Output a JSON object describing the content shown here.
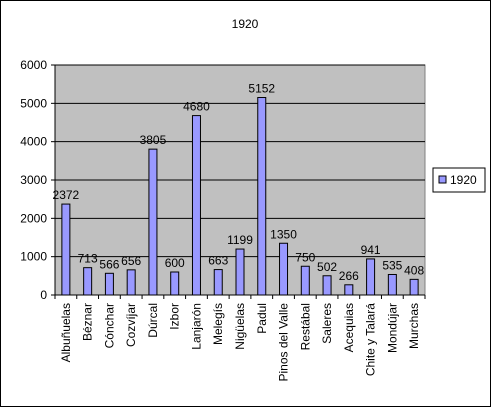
{
  "chart_data": {
    "type": "bar",
    "title": "1920",
    "xlabel": "",
    "ylabel": "",
    "ylim": [
      0,
      6000
    ],
    "yticks": [
      0,
      1000,
      2000,
      3000,
      4000,
      5000,
      6000
    ],
    "grid": true,
    "legend_position": "right",
    "categories": [
      "Albuñuelas",
      "Béznar",
      "Cónchar",
      "Cozvíjar",
      "Dúrcal",
      "Izbor",
      "Lanjarón",
      "Melegís",
      "Nigüelas",
      "Padul",
      "Pinos del Valle",
      "Restábal",
      "Saleres",
      "Acequias",
      "Chite y Talará",
      "Mondújar",
      "Murchas"
    ],
    "series": [
      {
        "name": "1920",
        "values": [
          2372,
          713,
          566,
          656,
          3805,
          600,
          4680,
          663,
          1199,
          5152,
          1350,
          750,
          502,
          266,
          941,
          535,
          408
        ],
        "data_labels": [
          "2372",
          "713",
          "566",
          "656",
          "3805",
          "600",
          "4680",
          "663",
          "1199",
          "5152",
          "1350",
          "750",
          "502",
          "266",
          "941",
          "535",
          "408"
        ]
      }
    ],
    "colors": {
      "plot_background": "#c0c0c0",
      "bar_fill": "#9999ff",
      "bar_stroke": "#000000",
      "gridline": "#000000"
    }
  }
}
